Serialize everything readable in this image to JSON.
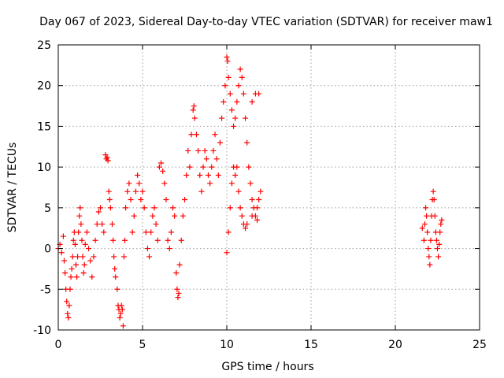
{
  "chart_data": {
    "type": "scatter",
    "title": "Day 067 of 2023, Sidereal Day-to-day VTEC variation (SDTVAR) for receiver maw1",
    "xlabel": "GPS time / hours",
    "ylabel": "SDTVAR / TECUs",
    "xlim": [
      0,
      25
    ],
    "ylim": [
      -10,
      25
    ],
    "x_ticks": [
      "0",
      "5",
      "10",
      "15",
      "20",
      "25"
    ],
    "y_ticks": [
      "-10",
      "-5",
      "0",
      "5",
      "10",
      "15",
      "20",
      "25"
    ],
    "grid": true,
    "marker": "plus",
    "color": "#ff0000",
    "series": [
      {
        "name": "maw1",
        "points": [
          [
            0.0,
            0.0
          ],
          [
            0.1,
            0.5
          ],
          [
            0.2,
            -0.5
          ],
          [
            0.3,
            1.5
          ],
          [
            0.35,
            -1.5
          ],
          [
            0.4,
            -3
          ],
          [
            0.45,
            -5
          ],
          [
            0.5,
            -6.5
          ],
          [
            0.55,
            -8
          ],
          [
            0.6,
            -8.5
          ],
          [
            0.65,
            -7
          ],
          [
            0.7,
            -5
          ],
          [
            0.75,
            -3.5
          ],
          [
            0.8,
            -2.5
          ],
          [
            0.85,
            -1
          ],
          [
            0.9,
            1
          ],
          [
            0.95,
            2
          ],
          [
            1.0,
            0.5
          ],
          [
            1.05,
            -2
          ],
          [
            1.1,
            -3.5
          ],
          [
            1.15,
            -1
          ],
          [
            1.2,
            2
          ],
          [
            1.25,
            4
          ],
          [
            1.3,
            5
          ],
          [
            1.35,
            3
          ],
          [
            1.4,
            1
          ],
          [
            1.45,
            -1
          ],
          [
            1.5,
            -3
          ],
          [
            1.55,
            -2
          ],
          [
            1.6,
            0.5
          ],
          [
            1.7,
            2
          ],
          [
            1.8,
            0
          ],
          [
            1.9,
            -1.5
          ],
          [
            2.0,
            -3.5
          ],
          [
            2.1,
            -1
          ],
          [
            2.2,
            1
          ],
          [
            2.3,
            3
          ],
          [
            2.4,
            4.5
          ],
          [
            2.5,
            5
          ],
          [
            2.6,
            3
          ],
          [
            2.7,
            2
          ],
          [
            2.8,
            11.5
          ],
          [
            2.85,
            11
          ],
          [
            2.9,
            11.2
          ],
          [
            2.95,
            10.8
          ],
          [
            3.0,
            7
          ],
          [
            3.05,
            6
          ],
          [
            3.1,
            5
          ],
          [
            3.2,
            3
          ],
          [
            3.25,
            1
          ],
          [
            3.3,
            -1
          ],
          [
            3.35,
            -2.5
          ],
          [
            3.4,
            -3.5
          ],
          [
            3.5,
            -5
          ],
          [
            3.55,
            -7
          ],
          [
            3.6,
            -7.5
          ],
          [
            3.65,
            -8.5
          ],
          [
            3.7,
            -8
          ],
          [
            3.75,
            -7
          ],
          [
            3.8,
            -7.5
          ],
          [
            3.85,
            -9.5
          ],
          [
            3.9,
            -1
          ],
          [
            3.95,
            1
          ],
          [
            4.0,
            5
          ],
          [
            4.1,
            7
          ],
          [
            4.2,
            8
          ],
          [
            4.3,
            6
          ],
          [
            4.4,
            2
          ],
          [
            4.5,
            4
          ],
          [
            4.6,
            7
          ],
          [
            4.7,
            9
          ],
          [
            4.8,
            8
          ],
          [
            4.9,
            6
          ],
          [
            5.0,
            7
          ],
          [
            5.1,
            5
          ],
          [
            5.2,
            2
          ],
          [
            5.3,
            0
          ],
          [
            5.4,
            -1
          ],
          [
            5.5,
            2
          ],
          [
            5.6,
            4
          ],
          [
            5.7,
            5
          ],
          [
            5.8,
            3
          ],
          [
            5.9,
            1
          ],
          [
            6.0,
            10
          ],
          [
            6.1,
            10.5
          ],
          [
            6.2,
            9.5
          ],
          [
            6.3,
            8
          ],
          [
            6.4,
            6
          ],
          [
            6.5,
            1
          ],
          [
            6.6,
            0
          ],
          [
            6.7,
            2
          ],
          [
            6.8,
            5
          ],
          [
            6.9,
            4
          ],
          [
            7.0,
            -3
          ],
          [
            7.05,
            -5
          ],
          [
            7.1,
            -6
          ],
          [
            7.15,
            -5.5
          ],
          [
            7.2,
            -2
          ],
          [
            7.3,
            1
          ],
          [
            7.4,
            4
          ],
          [
            7.5,
            6
          ],
          [
            7.6,
            9
          ],
          [
            7.7,
            12
          ],
          [
            7.8,
            10
          ],
          [
            7.9,
            14
          ],
          [
            8.0,
            17
          ],
          [
            8.05,
            17.5
          ],
          [
            8.1,
            16
          ],
          [
            8.2,
            14
          ],
          [
            8.3,
            12
          ],
          [
            8.4,
            9
          ],
          [
            8.5,
            7
          ],
          [
            8.6,
            10
          ],
          [
            8.7,
            12
          ],
          [
            8.8,
            11
          ],
          [
            8.9,
            9
          ],
          [
            9.0,
            8
          ],
          [
            9.1,
            10
          ],
          [
            9.2,
            12
          ],
          [
            9.3,
            14
          ],
          [
            9.4,
            11
          ],
          [
            9.5,
            9
          ],
          [
            9.6,
            13
          ],
          [
            9.7,
            16
          ],
          [
            9.8,
            18
          ],
          [
            9.9,
            20
          ],
          [
            10.0,
            23.5
          ],
          [
            10.05,
            23
          ],
          [
            10.1,
            21
          ],
          [
            10.2,
            19
          ],
          [
            10.3,
            17
          ],
          [
            10.4,
            15
          ],
          [
            10.5,
            16
          ],
          [
            10.6,
            18
          ],
          [
            10.7,
            20
          ],
          [
            10.8,
            22
          ],
          [
            10.9,
            21
          ],
          [
            11.0,
            19
          ],
          [
            11.1,
            16
          ],
          [
            11.2,
            13
          ],
          [
            11.3,
            10
          ],
          [
            11.4,
            8
          ],
          [
            11.5,
            6
          ],
          [
            11.6,
            5
          ],
          [
            11.7,
            4
          ],
          [
            11.8,
            5
          ],
          [
            11.9,
            6
          ],
          [
            12.0,
            7
          ],
          [
            10.0,
            -0.5
          ],
          [
            10.1,
            2
          ],
          [
            10.2,
            5
          ],
          [
            10.3,
            8
          ],
          [
            10.4,
            10
          ],
          [
            10.5,
            9
          ],
          [
            10.6,
            10
          ],
          [
            10.7,
            7
          ],
          [
            10.8,
            5
          ],
          [
            10.9,
            4
          ],
          [
            11.0,
            3
          ],
          [
            11.1,
            2.5
          ],
          [
            11.2,
            3
          ],
          [
            11.5,
            18
          ],
          [
            11.7,
            19
          ],
          [
            11.9,
            19
          ],
          [
            11.5,
            4
          ],
          [
            11.8,
            3.5
          ],
          [
            21.6,
            2.5
          ],
          [
            21.7,
            1
          ],
          [
            21.75,
            3
          ],
          [
            21.8,
            5
          ],
          [
            21.85,
            4
          ],
          [
            21.9,
            2
          ],
          [
            21.95,
            0
          ],
          [
            22.0,
            -1
          ],
          [
            22.05,
            -2
          ],
          [
            22.1,
            1
          ],
          [
            22.15,
            4
          ],
          [
            22.2,
            6
          ],
          [
            22.25,
            7
          ],
          [
            22.3,
            6
          ],
          [
            22.35,
            4
          ],
          [
            22.4,
            2
          ],
          [
            22.45,
            1
          ],
          [
            22.5,
            0
          ],
          [
            22.55,
            -1
          ],
          [
            22.6,
            0.5
          ],
          [
            22.65,
            2
          ],
          [
            22.7,
            3
          ],
          [
            22.75,
            3.5
          ]
        ]
      }
    ]
  }
}
